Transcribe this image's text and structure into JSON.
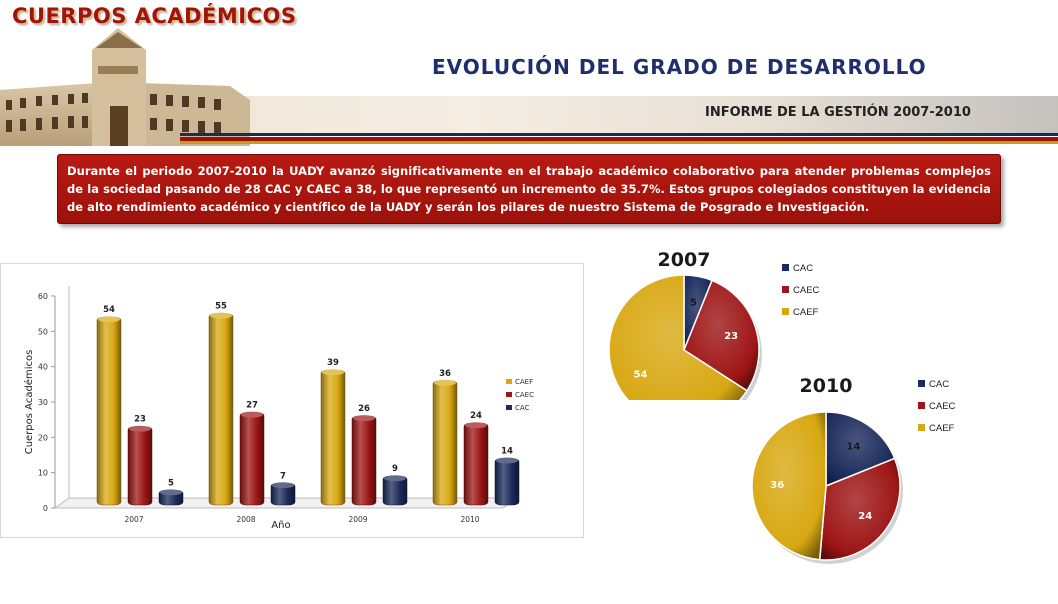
{
  "header": {
    "logo_text": "CUERPOS ACADÉMICOS",
    "title": "EVOLUCIÓN DEL GRADO DE DESARROLLO",
    "subtitle": "INFORME DE LA GESTIÓN 2007-2010"
  },
  "intro": {
    "text": "Durante el periodo 2007-2010 la UADY avanzó significativamente en el trabajo académico colaborativo para atender problemas complejos de la sociedad pasando de 28 CAC y CAEC a 38, lo que representó un incremento de 35.7%. Estos grupos colegiados constituyen la evidencia de alto rendimiento académico y científico de la UADY y serán los pilares de nuestro Sistema de Posgrado e Investigación."
  },
  "colors": {
    "CAEF": "#d8a813",
    "CAEC": "#9e1616",
    "CAC": "#1c2b5c",
    "title_blue": "#1f2f6b",
    "brand_red": "#a0140c"
  },
  "chart_data": [
    {
      "type": "bar",
      "xlabel": "Año",
      "ylabel": "Cuerpos Académicos",
      "ylim": [
        0,
        60
      ],
      "yticks": [
        0,
        10,
        20,
        30,
        40,
        50,
        60
      ],
      "categories": [
        "2007",
        "2008",
        "2009",
        "2010"
      ],
      "series": [
        {
          "name": "CAEF",
          "values": [
            54,
            55,
            39,
            36
          ]
        },
        {
          "name": "CAEC",
          "values": [
            23,
            27,
            26,
            24
          ]
        },
        {
          "name": "CAC",
          "values": [
            5,
            7,
            9,
            14
          ]
        }
      ],
      "legend_position": "right",
      "grid": false
    },
    {
      "type": "pie",
      "title": "2007",
      "legend": [
        "CAC",
        "CAEC",
        "CAEF"
      ],
      "slices": [
        {
          "name": "CAC",
          "value": 5
        },
        {
          "name": "CAEC",
          "value": 23
        },
        {
          "name": "CAEF",
          "value": 54
        }
      ],
      "legend_position": "right"
    },
    {
      "type": "pie",
      "title": "2010",
      "legend": [
        "CAC",
        "CAEC",
        "CAEF"
      ],
      "slices": [
        {
          "name": "CAC",
          "value": 14
        },
        {
          "name": "CAEC",
          "value": 24
        },
        {
          "name": "CAEF",
          "value": 36
        }
      ],
      "legend_position": "right"
    }
  ]
}
